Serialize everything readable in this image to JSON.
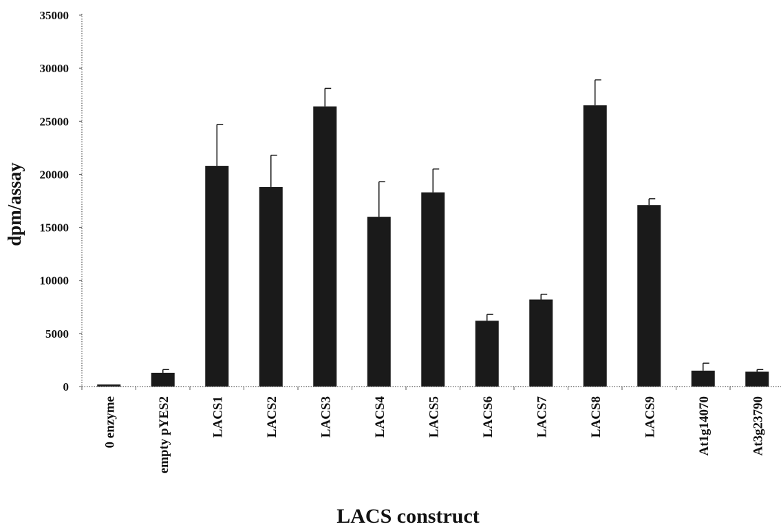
{
  "chart_data": {
    "type": "bar",
    "title": "",
    "xlabel": "LACS construct",
    "ylabel": "dpm/assay",
    "ylim": [
      0,
      35000
    ],
    "yticks": [
      0,
      5000,
      10000,
      15000,
      20000,
      25000,
      30000,
      35000
    ],
    "grid": false,
    "legend": "none",
    "bar_color": "#1a1a1a",
    "categories": [
      "0 enzyme",
      "empty pYES2",
      "LACS1",
      "LACS2",
      "LACS3",
      "LACS4",
      "LACS5",
      "LACS6",
      "LACS7",
      "LACS8",
      "LACS9",
      "At1g14070",
      "At3g23790"
    ],
    "series": [
      {
        "values": [
          200,
          1300,
          20800,
          18800,
          26400,
          16000,
          18300,
          6200,
          8200,
          26500,
          17100,
          1500,
          1400
        ],
        "error": [
          0,
          300,
          3900,
          3000,
          1700,
          3300,
          2200,
          600,
          500,
          2400,
          600,
          700,
          200
        ]
      }
    ]
  }
}
